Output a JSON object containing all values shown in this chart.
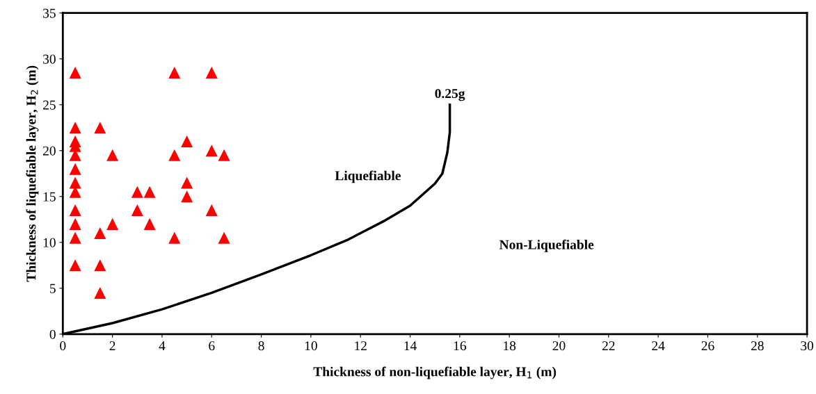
{
  "chart_data": {
    "type": "scatter",
    "xlabel": "Thickness of non-liquefiable layer, H$_{1}$ (m)",
    "ylabel": "Thickness of liquefiable layer, H$_{2}$ (m)",
    "xlim": [
      0,
      30
    ],
    "xticks": [
      0,
      2,
      4,
      6,
      8,
      10,
      12,
      14,
      16,
      18,
      20,
      22,
      24,
      26,
      28,
      30
    ],
    "ylim": [
      0,
      35
    ],
    "yticks": [
      0,
      5,
      10,
      15,
      20,
      25,
      30,
      35
    ],
    "grid": false,
    "series": [
      {
        "color": "#ff0000",
        "marker": "triangle",
        "x": [
          0.5,
          0.5,
          0.5,
          0.5,
          0.5,
          0.5,
          0.5,
          0.5,
          0.5,
          0.5,
          0.5,
          0.5,
          1.5,
          1.5,
          1.5,
          1.5,
          2,
          2,
          3,
          3,
          3.5,
          3.5,
          4.5,
          4.5,
          4.5,
          5,
          5,
          5,
          6,
          6,
          6,
          6.5,
          6.5
        ],
        "values": [
          28.5,
          22.5,
          21,
          20.5,
          19.5,
          18,
          16.5,
          15.5,
          13.5,
          12,
          10.5,
          7.5,
          22.5,
          11,
          7.5,
          4.5,
          19.5,
          12,
          15.5,
          13.5,
          15.5,
          12,
          28.5,
          19.5,
          10.5,
          21,
          16.5,
          15,
          28.5,
          20,
          13.5,
          19.5,
          10.5
        ]
      },
      {
        "type": "line",
        "color": "#000000",
        "marker": "none",
        "line_style": "solid",
        "x": [
          0,
          2,
          4,
          6,
          8,
          10,
          11.5,
          12,
          13,
          14,
          15,
          15.3,
          15.5,
          15.6,
          15.6
        ],
        "values": [
          0,
          1.2,
          2.7,
          4.5,
          6.5,
          8.6,
          10.3,
          11,
          12.4,
          14,
          16.4,
          17.5,
          19.8,
          22,
          25
        ]
      }
    ],
    "annotations": [
      {
        "text": "0.25g",
        "x": 15.6,
        "y": 25
      },
      "Liquefiable",
      "Non-Liquefiable"
    ]
  }
}
